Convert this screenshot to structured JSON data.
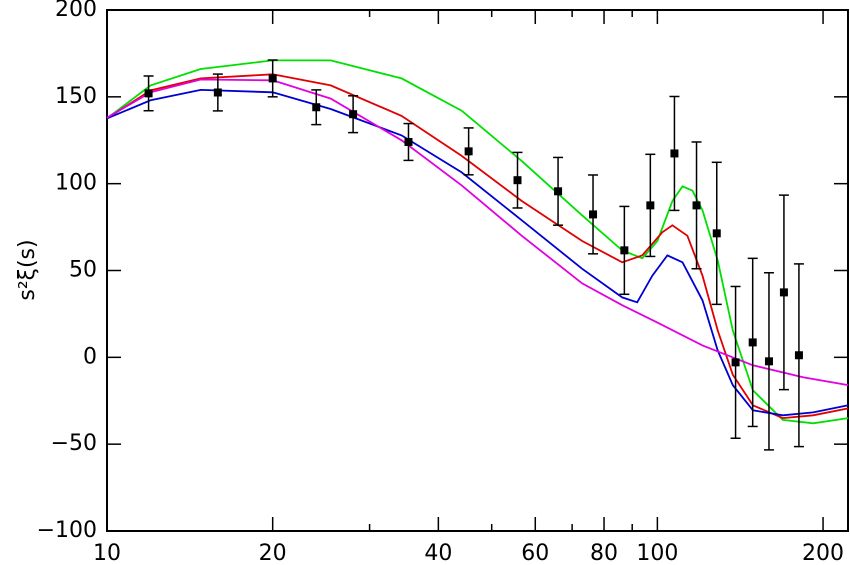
{
  "chart_data": {
    "type": "line",
    "ylabel": "s²ξ(s)",
    "xscale": "log",
    "xlim": [
      10,
      222
    ],
    "ylim": [
      -100,
      200
    ],
    "xticks": [
      10,
      20,
      40,
      60,
      80,
      100,
      200
    ],
    "xminorticks": [
      30,
      50,
      70,
      90
    ],
    "yticks": [
      {
        "value": -100,
        "label": "−100"
      },
      {
        "value": -50,
        "label": "−50"
      },
      0,
      50,
      100,
      150,
      200
    ],
    "series": [
      {
        "color": "#00e000",
        "x": [
          10,
          12.0,
          14.8,
          20,
          25.5,
          34.3,
          44.1,
          56.7,
          73.0,
          86.3,
          93.9,
          100,
          106.5,
          111.1,
          115.8,
          120.8,
          128.7,
          137.1,
          149.1,
          169.0,
          191.9,
          222.2
        ],
        "values": [
          137.6,
          156.6,
          166,
          171,
          171,
          160.6,
          142,
          113,
          81.7,
          61.6,
          57,
          67,
          90,
          98.4,
          96,
          84.6,
          55.8,
          15.5,
          -19,
          -36,
          -38,
          -35
        ]
      },
      {
        "color": "#e00000",
        "x": [
          10,
          12.0,
          14.8,
          20,
          25.5,
          34.3,
          44.1,
          56.7,
          73.0,
          86.3,
          93.9,
          102.1,
          106.5,
          113.4,
          120.8,
          128.7,
          137.1,
          149.1,
          169.0,
          191.9,
          222.2
        ],
        "values": [
          137.6,
          153.7,
          160.6,
          163,
          156.6,
          139,
          116,
          90,
          67,
          54.7,
          58.7,
          72,
          76,
          70,
          47,
          15.5,
          -10,
          -27.6,
          -35,
          -33.4,
          -29.4
        ]
      },
      {
        "color": "#0000d0",
        "x": [
          10,
          12.0,
          14.8,
          20,
          25.5,
          34.3,
          44.1,
          56.7,
          73.0,
          86.3,
          91.9,
          97.9,
          104.3,
          111.1,
          120.8,
          128.7,
          137.1,
          149.1,
          169.0,
          191.9,
          222.2
        ],
        "values": [
          137.6,
          148,
          154,
          152.6,
          143,
          127.8,
          106.5,
          78.9,
          51,
          34.5,
          31.7,
          47,
          58.7,
          54.7,
          32.8,
          4,
          -16,
          -30.5,
          -33.4,
          -31.7,
          -27.6
        ]
      },
      {
        "color": "#e000e0",
        "x": [
          10,
          12.0,
          14.8,
          20,
          25.5,
          34.3,
          44.1,
          56.7,
          73.0,
          86.3,
          100,
          120.8,
          149.1,
          183.9,
          222.2
        ],
        "values": [
          138,
          152.6,
          160,
          159.5,
          149,
          125,
          99,
          70,
          42.6,
          30,
          20,
          6.9,
          -4.6,
          -11.5,
          -16
        ]
      }
    ],
    "points": {
      "color": "#000000",
      "x": [
        11.9,
        15.9,
        20,
        24.0,
        28.0,
        35.3,
        45.4,
        55.7,
        66.0,
        76.4,
        87.1,
        97.1,
        107.4,
        117.8,
        128.2,
        138.7,
        149.0,
        159.5,
        169.8,
        180.8
      ],
      "values": [
        152,
        152.5,
        160.6,
        144,
        140,
        124,
        118.6,
        102,
        95.6,
        82.3,
        61.6,
        87.5,
        117.4,
        87.5,
        71.4,
        -2.9,
        8.6,
        -2.3,
        37.4,
        1.2
      ],
      "errors": [
        10,
        10.6,
        10.6,
        10,
        10.6,
        10.6,
        13.5,
        16,
        19.5,
        22.7,
        25.3,
        29.4,
        32.8,
        36.5,
        40.9,
        43.7,
        48.4,
        51,
        56,
        52.6
      ]
    }
  }
}
